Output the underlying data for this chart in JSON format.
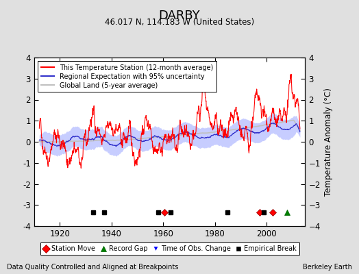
{
  "title": "DARBY",
  "subtitle": "46.017 N, 114.183 W (United States)",
  "ylabel": "Temperature Anomaly (°C)",
  "xlabel_note": "Data Quality Controlled and Aligned at Breakpoints",
  "credit": "Berkeley Earth",
  "ylim": [
    -4,
    4
  ],
  "xlim": [
    1910,
    2015
  ],
  "xticks": [
    1920,
    1940,
    1960,
    1980,
    2000
  ],
  "yticks": [
    -4,
    -3,
    -2,
    -1,
    0,
    1,
    2,
    3,
    4
  ],
  "bg_color": "#e0e0e0",
  "plot_bg_color": "#ffffff",
  "station_moves": [
    1960.5,
    1997.5,
    2002.5
  ],
  "record_gaps": [
    2008.0
  ],
  "time_obs_changes": [],
  "empirical_breaks": [
    1933,
    1937,
    1958,
    1963,
    1985,
    1999
  ],
  "seed": 42
}
